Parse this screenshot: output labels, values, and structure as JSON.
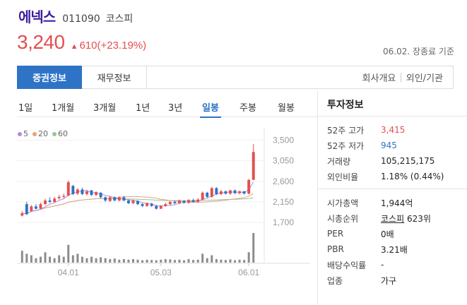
{
  "stock": {
    "name": "에넥스",
    "code": "011090",
    "market": "코스피",
    "price": "3,240",
    "change_arrow": "▲",
    "change": "610(+23.19%)",
    "asof": "06.02. 장종료 기준"
  },
  "tabs": {
    "primary": [
      "증권정보",
      "재무정보"
    ],
    "right": [
      "회사개요",
      "외인/기관"
    ],
    "separator": "|"
  },
  "periods": [
    "1일",
    "1개월",
    "3개월",
    "1년",
    "3년",
    "일봉",
    "주봉",
    "월봉"
  ],
  "active_period": "일봉",
  "legend": [
    {
      "label": "5",
      "color": "#b48ae0"
    },
    {
      "label": "20",
      "color": "#e8a07a"
    },
    {
      "label": "60",
      "color": "#8fc98f"
    }
  ],
  "colors": {
    "up": "#e34f4f",
    "down": "#2e73c6",
    "accent": "#2e73c6",
    "volume": "#8c8c8c"
  },
  "chart_data": {
    "type": "candlestick",
    "ylim": [
      1500,
      3600
    ],
    "y_ticks": [
      "3,500",
      "3,050",
      "2,600",
      "2,150",
      "1,700"
    ],
    "y_tick_values": [
      3500,
      3050,
      2600,
      2150,
      1700
    ],
    "x_ticks": [
      {
        "label": "04.01",
        "index": 10
      },
      {
        "label": "05.03",
        "index": 30
      },
      {
        "label": "06.01",
        "index": 49
      }
    ],
    "candles": [
      {
        "o": 1850,
        "c": 1900,
        "h": 1950,
        "l": 1830
      },
      {
        "o": 2100,
        "c": 1880,
        "h": 2150,
        "l": 1860
      },
      {
        "o": 1950,
        "c": 2050,
        "h": 2080,
        "l": 1930
      },
      {
        "o": 2050,
        "c": 2000,
        "h": 2100,
        "l": 1980
      },
      {
        "o": 2000,
        "c": 2100,
        "h": 2130,
        "l": 1990
      },
      {
        "o": 2100,
        "c": 2180,
        "h": 2220,
        "l": 2080
      },
      {
        "o": 2180,
        "c": 2150,
        "h": 2250,
        "l": 2120
      },
      {
        "o": 2150,
        "c": 2220,
        "h": 2260,
        "l": 2130
      },
      {
        "o": 2230,
        "c": 2260,
        "h": 2300,
        "l": 2200
      },
      {
        "o": 2260,
        "c": 2280,
        "h": 2330,
        "l": 2230
      },
      {
        "o": 2290,
        "c": 2580,
        "h": 2620,
        "l": 2270
      },
      {
        "o": 2500,
        "c": 2320,
        "h": 2520,
        "l": 2300
      },
      {
        "o": 2330,
        "c": 2420,
        "h": 2450,
        "l": 2300
      },
      {
        "o": 2420,
        "c": 2320,
        "h": 2460,
        "l": 2300
      },
      {
        "o": 2320,
        "c": 2380,
        "h": 2400,
        "l": 2290
      },
      {
        "o": 2400,
        "c": 2300,
        "h": 2410,
        "l": 2280
      },
      {
        "o": 2300,
        "c": 2360,
        "h": 2380,
        "l": 2280
      },
      {
        "o": 2350,
        "c": 2250,
        "h": 2360,
        "l": 2230
      },
      {
        "o": 2250,
        "c": 2180,
        "h": 2270,
        "l": 2150
      },
      {
        "o": 2170,
        "c": 2250,
        "h": 2280,
        "l": 2150
      },
      {
        "o": 2250,
        "c": 2180,
        "h": 2270,
        "l": 2160
      },
      {
        "o": 2180,
        "c": 2250,
        "h": 2270,
        "l": 2160
      },
      {
        "o": 2250,
        "c": 2180,
        "h": 2280,
        "l": 2160
      },
      {
        "o": 2180,
        "c": 2120,
        "h": 2200,
        "l": 2100
      },
      {
        "o": 2120,
        "c": 2180,
        "h": 2200,
        "l": 2100
      },
      {
        "o": 2170,
        "c": 2100,
        "h": 2190,
        "l": 2080
      },
      {
        "o": 2100,
        "c": 2060,
        "h": 2120,
        "l": 2040
      },
      {
        "o": 2060,
        "c": 2120,
        "h": 2140,
        "l": 2040
      },
      {
        "o": 2110,
        "c": 2060,
        "h": 2130,
        "l": 2040
      },
      {
        "o": 2060,
        "c": 2000,
        "h": 2080,
        "l": 1980
      },
      {
        "o": 2000,
        "c": 2060,
        "h": 2080,
        "l": 1990
      },
      {
        "o": 2060,
        "c": 2100,
        "h": 2130,
        "l": 2040
      },
      {
        "o": 2100,
        "c": 2150,
        "h": 2170,
        "l": 2080
      },
      {
        "o": 2150,
        "c": 2120,
        "h": 2180,
        "l": 2100
      },
      {
        "o": 2120,
        "c": 2180,
        "h": 2200,
        "l": 2100
      },
      {
        "o": 2170,
        "c": 2130,
        "h": 2190,
        "l": 2110
      },
      {
        "o": 2130,
        "c": 2190,
        "h": 2210,
        "l": 2110
      },
      {
        "o": 2190,
        "c": 2150,
        "h": 2220,
        "l": 2130
      },
      {
        "o": 2150,
        "c": 2200,
        "h": 2230,
        "l": 2130
      },
      {
        "o": 2200,
        "c": 2350,
        "h": 2380,
        "l": 2180
      },
      {
        "o": 2350,
        "c": 2260,
        "h": 2370,
        "l": 2240
      },
      {
        "o": 2260,
        "c": 2450,
        "h": 2480,
        "l": 2240
      },
      {
        "o": 2450,
        "c": 2320,
        "h": 2470,
        "l": 2300
      },
      {
        "o": 2320,
        "c": 2380,
        "h": 2410,
        "l": 2300
      },
      {
        "o": 2380,
        "c": 2330,
        "h": 2400,
        "l": 2310
      },
      {
        "o": 2330,
        "c": 2400,
        "h": 2420,
        "l": 2300
      },
      {
        "o": 2400,
        "c": 2340,
        "h": 2420,
        "l": 2320
      },
      {
        "o": 2340,
        "c": 2380,
        "h": 2400,
        "l": 2310
      },
      {
        "o": 2380,
        "c": 2330,
        "h": 2390,
        "l": 2310
      },
      {
        "o": 2330,
        "c": 2630,
        "h": 2650,
        "l": 2310
      },
      {
        "o": 2630,
        "c": 3240,
        "h": 3415,
        "l": 2630
      }
    ],
    "volumes": [
      40,
      30,
      25,
      15,
      20,
      35,
      20,
      15,
      25,
      20,
      60,
      25,
      30,
      20,
      15,
      20,
      15,
      18,
      15,
      12,
      14,
      10,
      12,
      10,
      12,
      10,
      8,
      10,
      9,
      8,
      10,
      12,
      11,
      9,
      10,
      8,
      12,
      9,
      10,
      30,
      15,
      25,
      12,
      10,
      9,
      11,
      8,
      10,
      9,
      35,
      100
    ]
  },
  "investment": {
    "title": "투자정보",
    "group1": [
      {
        "k": "52주 고가",
        "v": "3,415",
        "tone": "red"
      },
      {
        "k": "52주 저가",
        "v": "945",
        "tone": "blue"
      },
      {
        "k": "거래량",
        "v": "105,215,175",
        "tone": ""
      },
      {
        "k": "외인비율",
        "v": "1.18% (0.44%)",
        "tone": ""
      }
    ],
    "group2": [
      {
        "k": "시가총액",
        "v": "1,944억",
        "tone": ""
      },
      {
        "k": "시총순위",
        "v_link": "코스피",
        "v": " 623위",
        "tone": ""
      },
      {
        "k": "PER",
        "v": "0배",
        "tone": ""
      },
      {
        "k": "PBR",
        "v": "3.21배",
        "tone": ""
      },
      {
        "k": "배당수익률",
        "v": "-",
        "tone": ""
      },
      {
        "k": "업종",
        "v": "가구",
        "tone": "",
        "link": true
      }
    ]
  }
}
